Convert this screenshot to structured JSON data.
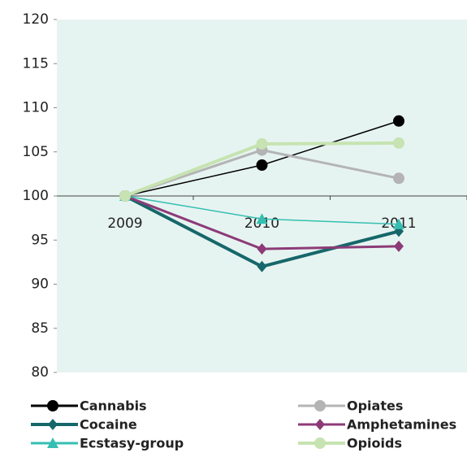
{
  "chart_data": {
    "type": "line",
    "categories": [
      "2009",
      "2010",
      "2011"
    ],
    "series": [
      {
        "name": "Cannabis",
        "color": "#000000",
        "marker": "circle",
        "line_width": 1.5,
        "values": [
          100,
          103.5,
          108.5
        ]
      },
      {
        "name": "Opiates",
        "color": "#b4b4b4",
        "marker": "circle",
        "line_width": 3,
        "values": [
          100,
          105.2,
          102
        ]
      },
      {
        "name": "Cocaine",
        "color": "#16676a",
        "marker": "diamond",
        "line_width": 4,
        "values": [
          100,
          92,
          96
        ]
      },
      {
        "name": "Amphetamines",
        "color": "#8c3b78",
        "marker": "diamond",
        "line_width": 3,
        "values": [
          100,
          94,
          94.3
        ]
      },
      {
        "name": "Ecstasy-group",
        "color": "#35bfb2",
        "marker": "triangle",
        "line_width": 1.5,
        "values": [
          100,
          97.4,
          96.8
        ]
      },
      {
        "name": "Opioids",
        "color": "#c6e3b1",
        "marker": "circle",
        "line_width": 4,
        "values": [
          100,
          105.9,
          106
        ]
      }
    ],
    "ylim": [
      80,
      120
    ],
    "yticks": [
      80,
      85,
      90,
      95,
      100,
      105,
      110,
      115,
      120
    ],
    "xaxis_crosses": 100,
    "plot_background": "#e6f4f1",
    "legend": "bottom"
  }
}
